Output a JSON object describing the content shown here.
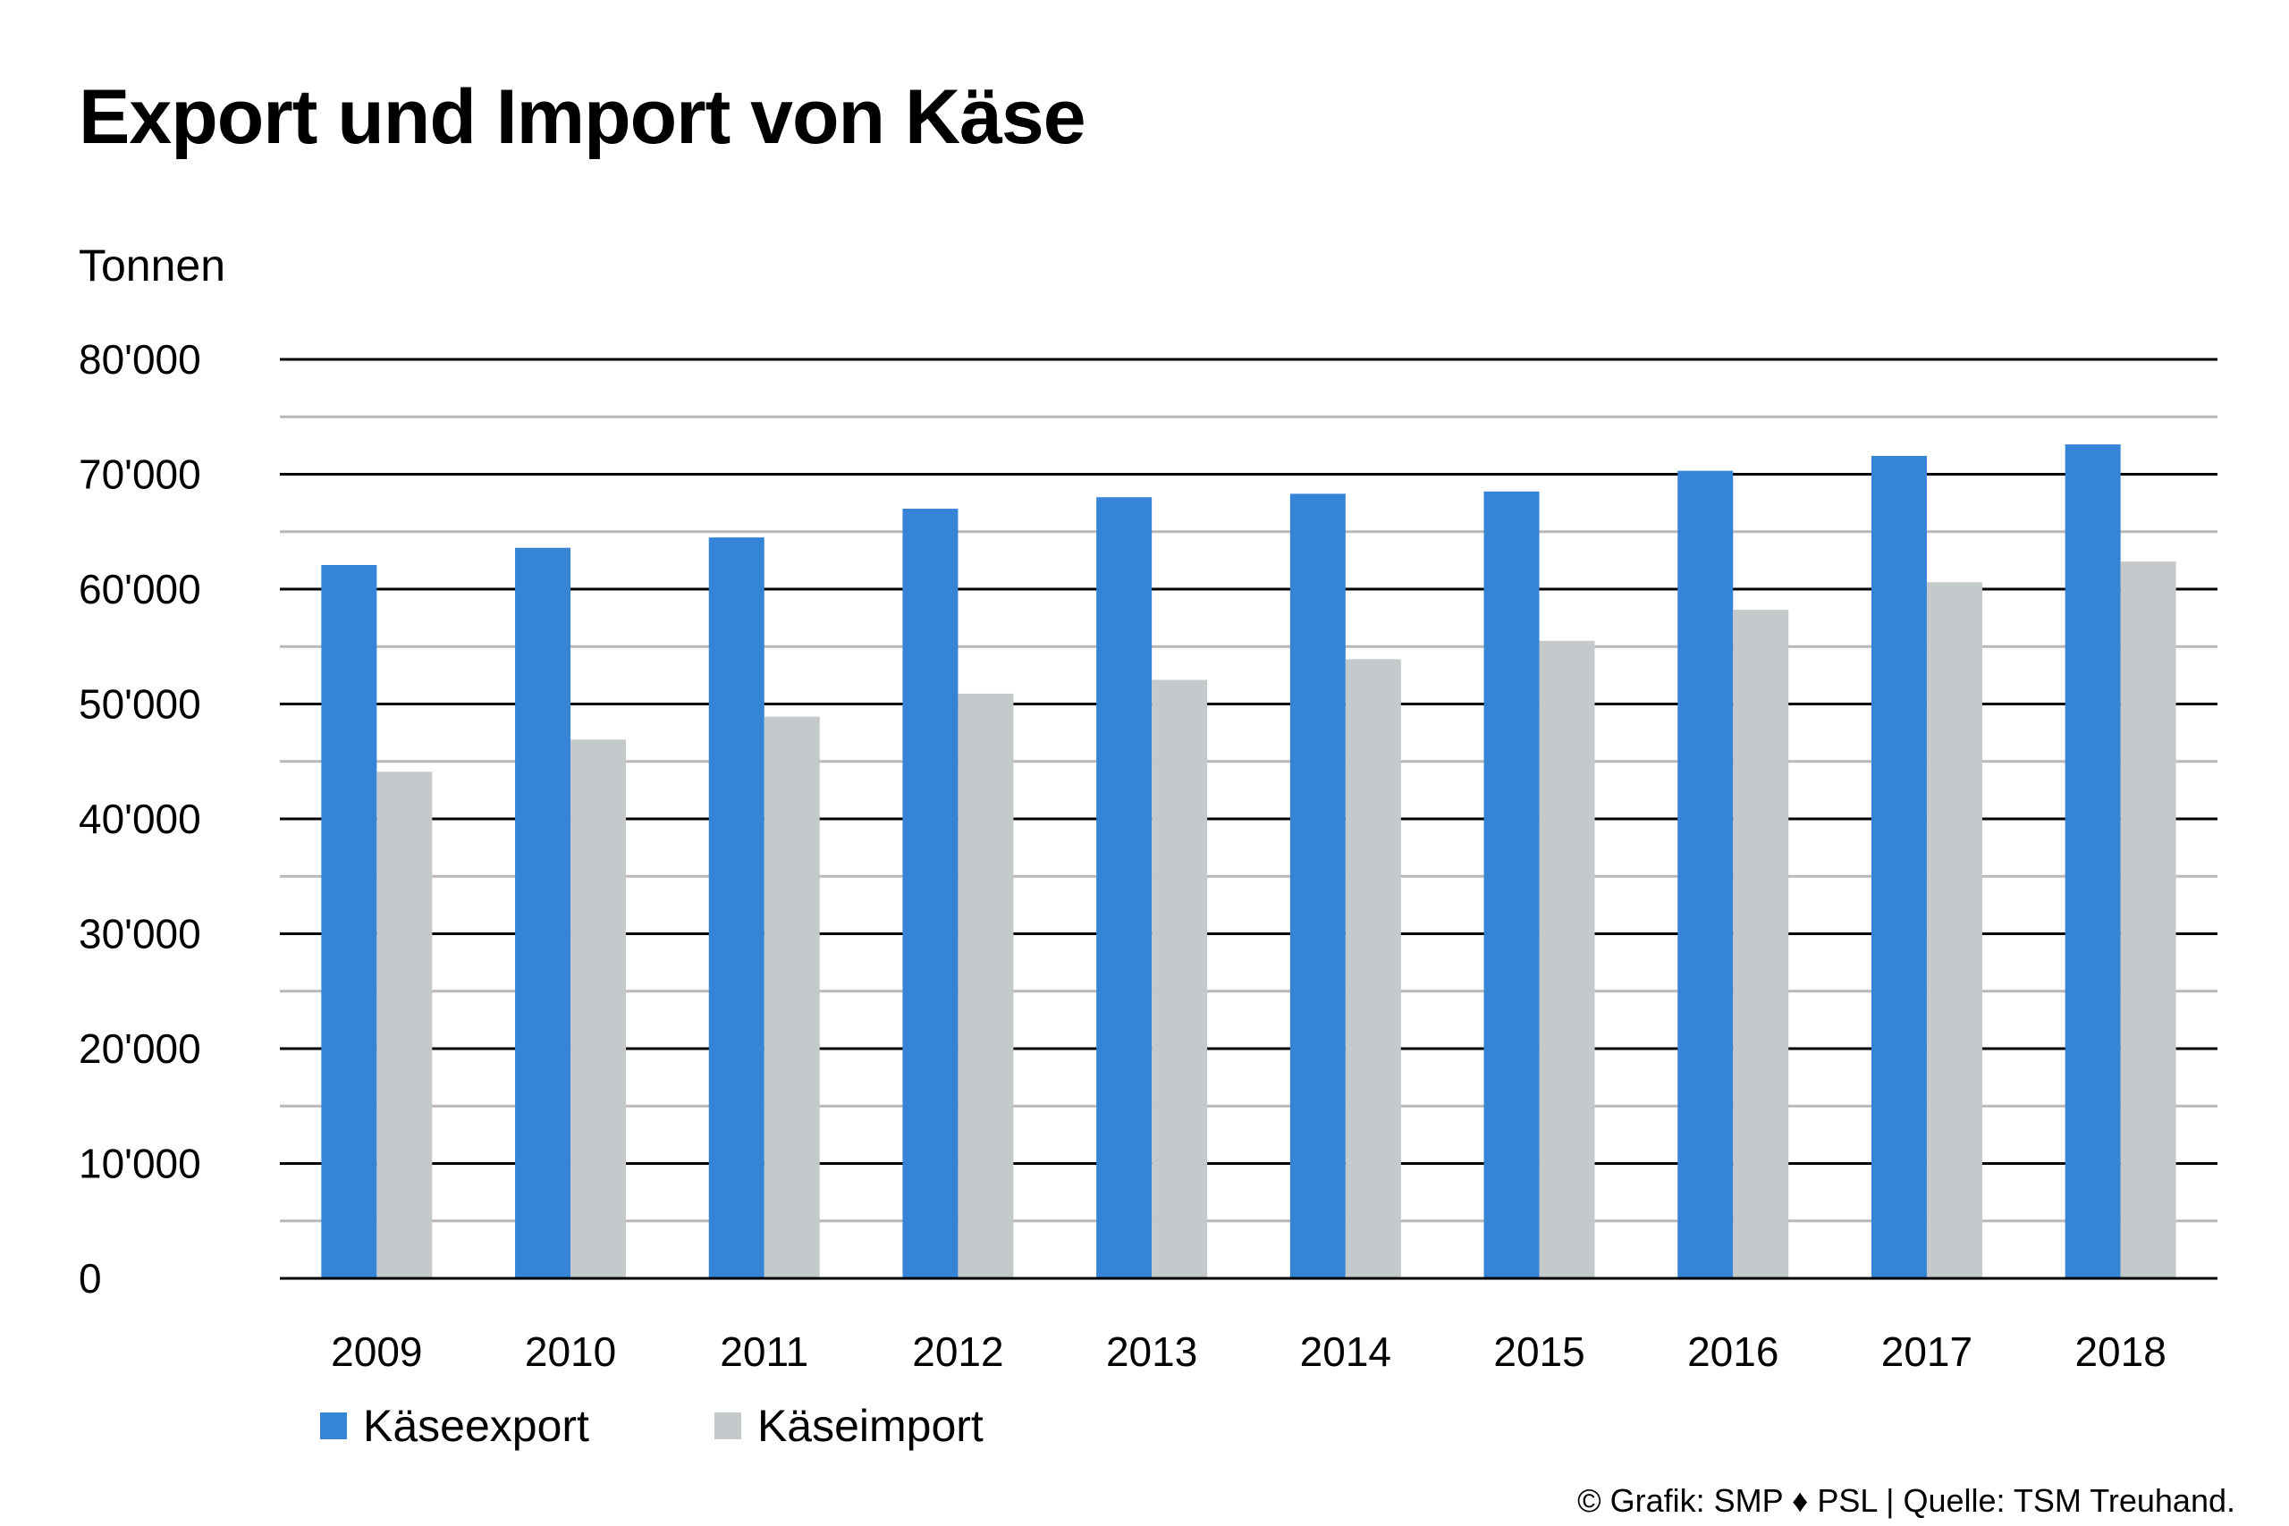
{
  "chart_data": {
    "type": "bar",
    "title": "Export und Import von Käse",
    "ylabel": "Tonnen",
    "xlabel": "",
    "ylim": [
      0,
      80000
    ],
    "yticks": [
      0,
      10000,
      20000,
      30000,
      40000,
      50000,
      60000,
      70000,
      80000
    ],
    "ytick_labels": [
      "0",
      "10'000",
      "20'000",
      "30'000",
      "40'000",
      "50'000",
      "60'000",
      "70'000",
      "80'000"
    ],
    "minor_gridlines": true,
    "legend_position": "bottom-left",
    "categories": [
      "2009",
      "2010",
      "2011",
      "2012",
      "2013",
      "2014",
      "2015",
      "2016",
      "2017",
      "2018"
    ],
    "series": [
      {
        "name": "Käseexport",
        "color": "#3584d6",
        "values": [
          62100,
          63600,
          64500,
          67000,
          68000,
          68300,
          68500,
          70300,
          71600,
          72600
        ]
      },
      {
        "name": "Käseimport",
        "color": "#c4c9cc",
        "values": [
          44100,
          46900,
          48900,
          50900,
          52100,
          53900,
          55500,
          58200,
          60600,
          62400
        ]
      }
    ]
  },
  "footer": {
    "credit": "© Grafik: SMP ♦ PSL | Quelle: TSM Treuhand."
  }
}
